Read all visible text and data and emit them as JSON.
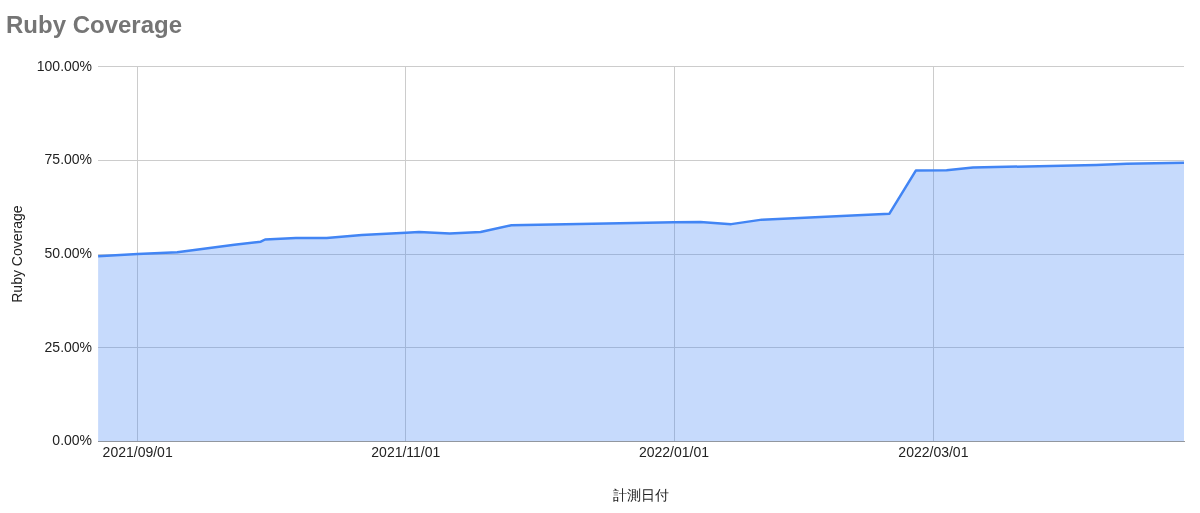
{
  "chart_data": {
    "type": "area",
    "title": "Ruby Coverage",
    "xlabel": "計測日付",
    "ylabel": "Ruby Coverage",
    "x": [
      "2021-08-23",
      "2021-09-01",
      "2021-09-10",
      "2021-09-23",
      "2021-09-29",
      "2021-09-30",
      "2021-10-07",
      "2021-10-14",
      "2021-10-22",
      "2021-11-01",
      "2021-11-04",
      "2021-11-11",
      "2021-11-18",
      "2021-11-25",
      "2022-01-01",
      "2022-01-07",
      "2022-01-14",
      "2022-01-21",
      "2022-02-19",
      "2022-02-25",
      "2022-03-04",
      "2022-03-10",
      "2022-04-07",
      "2022-04-14",
      "2022-04-27"
    ],
    "series": [
      {
        "color": "#4285f4",
        "values": [
          49.4,
          50.0,
          50.5,
          52.5,
          53.3,
          53.9,
          54.3,
          54.3,
          55.1,
          55.7,
          55.9,
          55.5,
          55.9,
          57.7,
          58.5,
          58.6,
          58.0,
          59.2,
          60.8,
          72.3,
          72.4,
          73.1,
          73.8,
          74.1,
          74.4
        ]
      }
    ],
    "xlim": [
      "2021-08-23",
      "2022-04-27"
    ],
    "xticks": [
      {
        "value": "2021-09-01",
        "label": "2021/09/01"
      },
      {
        "value": "2021-11-01",
        "label": "2021/11/01"
      },
      {
        "value": "2022-01-01",
        "label": "2022/01/01"
      },
      {
        "value": "2022-03-01",
        "label": "2022/03/01"
      }
    ],
    "ylim": [
      0,
      100
    ],
    "yticks": [
      {
        "value": 0,
        "label": "0.00%"
      },
      {
        "value": 25,
        "label": "25.00%"
      },
      {
        "value": 50,
        "label": "50.00%"
      },
      {
        "value": 75,
        "label": "75.00%"
      },
      {
        "value": 100,
        "label": "100.00%"
      }
    ],
    "grid": true,
    "legend": false
  }
}
